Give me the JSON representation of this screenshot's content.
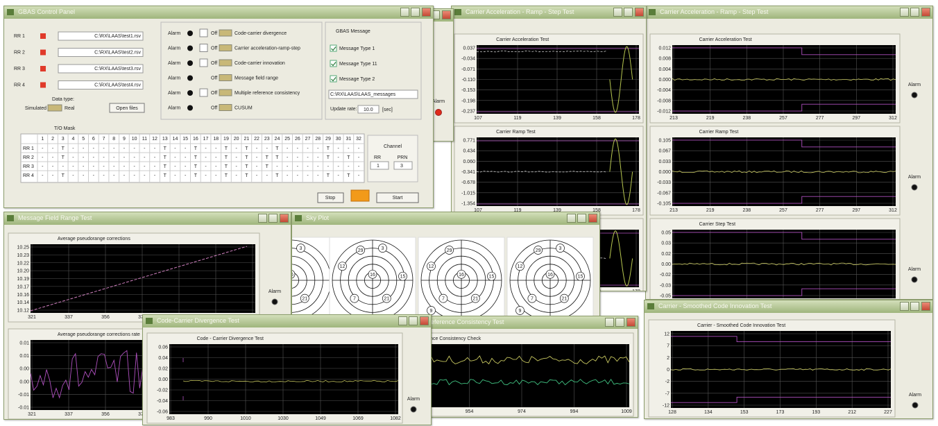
{
  "control_panel": {
    "title": "GBAS Control Panel",
    "receivers": [
      {
        "label": "RR 1",
        "file": "C:\\RX\\LAAS\\test1.rsv"
      },
      {
        "label": "RR 2",
        "file": "C:\\RX\\LAAS\\test2.rsv"
      },
      {
        "label": "RR 3",
        "file": "C:\\RX\\LAAS\\test3.rsv"
      },
      {
        "label": "RR 4",
        "file": "C:\\RX\\LAAS\\test4.rsv"
      }
    ],
    "data_type": {
      "label": "Data type:",
      "simulated": "Simulated",
      "real": "Real"
    },
    "open_files": "Open files",
    "alarms": [
      {
        "alarm": "Alarm",
        "state": "Off",
        "name": "Code-carrier divergence",
        "checkbox": true
      },
      {
        "alarm": "Alarm",
        "state": "Off",
        "name": "Carrier acceleration-ramp-step",
        "checkbox": true
      },
      {
        "alarm": "Alarm",
        "state": "Off",
        "name": "Code-carrier innovation",
        "checkbox": true
      },
      {
        "alarm": "Alarm",
        "state": "Off",
        "name": "Message field range",
        "checkbox": false
      },
      {
        "alarm": "Alarm",
        "state": "Off",
        "name": "Multiple reference consistency",
        "checkbox": true
      },
      {
        "alarm": "Alarm",
        "state": "Off",
        "name": "CUSUM",
        "checkbox": false
      }
    ],
    "gbas": {
      "title": "GBAS Message",
      "messages": [
        "Message Type 1",
        "Message Type 11",
        "Message Type 2"
      ],
      "file": "C:\\RX\\LAAS\\LAAS_messages",
      "update_label": "Update rate:",
      "update_value": "10.0",
      "update_unit": "[sec]"
    },
    "mask": {
      "title": "T/O Mask",
      "columns": [
        1,
        2,
        3,
        4,
        5,
        6,
        7,
        8,
        9,
        10,
        11,
        12,
        13,
        14,
        15,
        16,
        17,
        18,
        19,
        20,
        21,
        22,
        23,
        24,
        25,
        26,
        27,
        28,
        29,
        30,
        31,
        32
      ],
      "rows": [
        {
          "label": "RR 1",
          "cells": [
            "-",
            "-",
            "T",
            "-",
            "-",
            "-",
            "-",
            "-",
            "-",
            "-",
            "-",
            "-",
            "T",
            "-",
            "-",
            "T",
            "-",
            "-",
            "T",
            "-",
            "T",
            "-",
            "-",
            "T",
            "-",
            "-",
            "-",
            "-",
            "T",
            "-",
            "-",
            "-"
          ]
        },
        {
          "label": "RR 2",
          "cells": [
            "-",
            "-",
            "T",
            "-",
            "-",
            "-",
            "-",
            "-",
            "-",
            "-",
            "-",
            "-",
            "T",
            "-",
            "-",
            "T",
            "-",
            "-",
            "T",
            "-",
            "T",
            "-",
            "T",
            "T",
            "-",
            "-",
            "-",
            "-",
            "T",
            "-",
            "T",
            "-"
          ]
        },
        {
          "label": "RR 3",
          "cells": [
            "-",
            "-",
            "-",
            "-",
            "-",
            "-",
            "-",
            "-",
            "-",
            "-",
            "-",
            "-",
            "T",
            "-",
            "-",
            "T",
            "-",
            "-",
            "T",
            "-",
            "T",
            "-",
            "T",
            "-",
            "-",
            "-",
            "-",
            "-",
            "-",
            "-",
            "-",
            "-"
          ]
        },
        {
          "label": "RR 4",
          "cells": [
            "-",
            "-",
            "T",
            "-",
            "-",
            "-",
            "-",
            "-",
            "-",
            "-",
            "-",
            "-",
            "T",
            "-",
            "-",
            "T",
            "-",
            "-",
            "T",
            "-",
            "T",
            "-",
            "-",
            "T",
            "-",
            "-",
            "-",
            "-",
            "T",
            "-",
            "T",
            "-"
          ]
        }
      ]
    },
    "channel": {
      "title": "Channel",
      "rr_label": "RR",
      "prn_label": "PRN",
      "rr": "1",
      "prn": "3"
    },
    "stop": "Stop",
    "start": "Start"
  },
  "windows": [
    {
      "title": "Carrier Acceleration - Ramp - Step Test",
      "alarm": "Alarm",
      "plots": [
        {
          "title": "Carrier Acceleration Test",
          "yticks": [
            "0.012",
            "0.008",
            "0.004",
            "0.000",
            "-0.004",
            "-0.008",
            "-0.012"
          ],
          "xticks": [
            "213",
            "219",
            "238",
            "257",
            "277",
            "297",
            "312"
          ]
        },
        {
          "title": "Carrier Ramp Test",
          "yticks": [
            "0.105",
            "0.067",
            "0.033",
            "0.000",
            "-0.033",
            "-0.067",
            "-0.105"
          ],
          "xticks": [
            "213",
            "219",
            "238",
            "257",
            "277",
            "297",
            "312"
          ]
        },
        {
          "title": "Carrier Step Test",
          "yticks": [
            "0.05",
            "0.03",
            "0.02",
            "0.00",
            "-0.02",
            "-0.03",
            "-0.05"
          ],
          "xticks": [
            "213",
            "219",
            "238",
            "257",
            "277",
            "297",
            "312"
          ]
        }
      ]
    },
    {
      "title": "Carrier Acceleration - Ramp - Step Test",
      "plots": [
        {
          "title": "Carrier Acceleration Test",
          "yticks": [
            "0.037",
            "-0.034",
            "-0.071",
            "-0.110",
            "-0.153",
            "-0.198",
            "-0.237"
          ],
          "xticks": [
            "107",
            "119",
            "139",
            "158",
            "178"
          ]
        },
        {
          "title": "Carrier Ramp Test",
          "yticks": [
            "0.771",
            "0.434",
            "0.060",
            "-0.341",
            "-0.678",
            "-1.015",
            "-1.354"
          ],
          "xticks": [
            "107",
            "119",
            "139",
            "158",
            "178"
          ]
        },
        {
          "title": "Carrier Step Test",
          "yticks": [],
          "xticks": [
            "107",
            "119",
            "139",
            "158",
            "178"
          ]
        }
      ]
    },
    {
      "alarm": "Alarm"
    },
    {
      "title": "Message Field Range Test",
      "alarm": "Alarm",
      "plots": [
        {
          "title": "Average pseudorange corrections",
          "yticks": [
            "10.25",
            "10.23",
            "10.22",
            "10.20",
            "10.19",
            "10.17",
            "10.16",
            "10.14",
            "10.12"
          ],
          "xticks": [
            "321",
            "337",
            "356",
            "376",
            "396",
            "415",
            "422"
          ]
        },
        {
          "title": "Average pseudorange corrections rate",
          "yticks": [
            "0.01",
            "0.01",
            "0.00",
            "0.00",
            "-0.01",
            "-0.01"
          ],
          "xticks": [
            "321",
            "337",
            "356",
            "376",
            "396",
            "415",
            "422"
          ]
        }
      ]
    },
    {
      "title": "Sky Plot",
      "satellites": [
        "29",
        "12",
        "16",
        "7",
        "21",
        "3",
        "9",
        "15"
      ]
    },
    {
      "title": "Carrier - Smoothed Code Innovation Test",
      "alarm": "Alarm",
      "plots": [
        {
          "title": "Carrier - Smoothed Code Innovation Test",
          "yticks": [
            "12",
            "7",
            "2",
            "0",
            "-2",
            "-7",
            "-12"
          ],
          "xticks": [
            "128",
            "134",
            "153",
            "173",
            "193",
            "212",
            "227"
          ]
        }
      ]
    },
    {
      "title": "Multiple Reference Consistency Test",
      "plots": [
        {
          "title": "Multiple Reference Consistency Check",
          "yticks": [],
          "xticks": [
            "935",
            "954",
            "974",
            "994",
            "1009"
          ]
        }
      ]
    },
    {
      "title": "Code-Carrier Divergence Test",
      "alarm": "Alarm",
      "plots": [
        {
          "title": "Code - Carrier Divergence Test",
          "yticks": [
            "0.06",
            "0.04",
            "0.02",
            "0.00",
            "-0.02",
            "-0.04",
            "-0.06"
          ],
          "xticks": [
            "983",
            "990",
            "1010",
            "1030",
            "1049",
            "1069",
            "1082"
          ]
        }
      ]
    }
  ]
}
